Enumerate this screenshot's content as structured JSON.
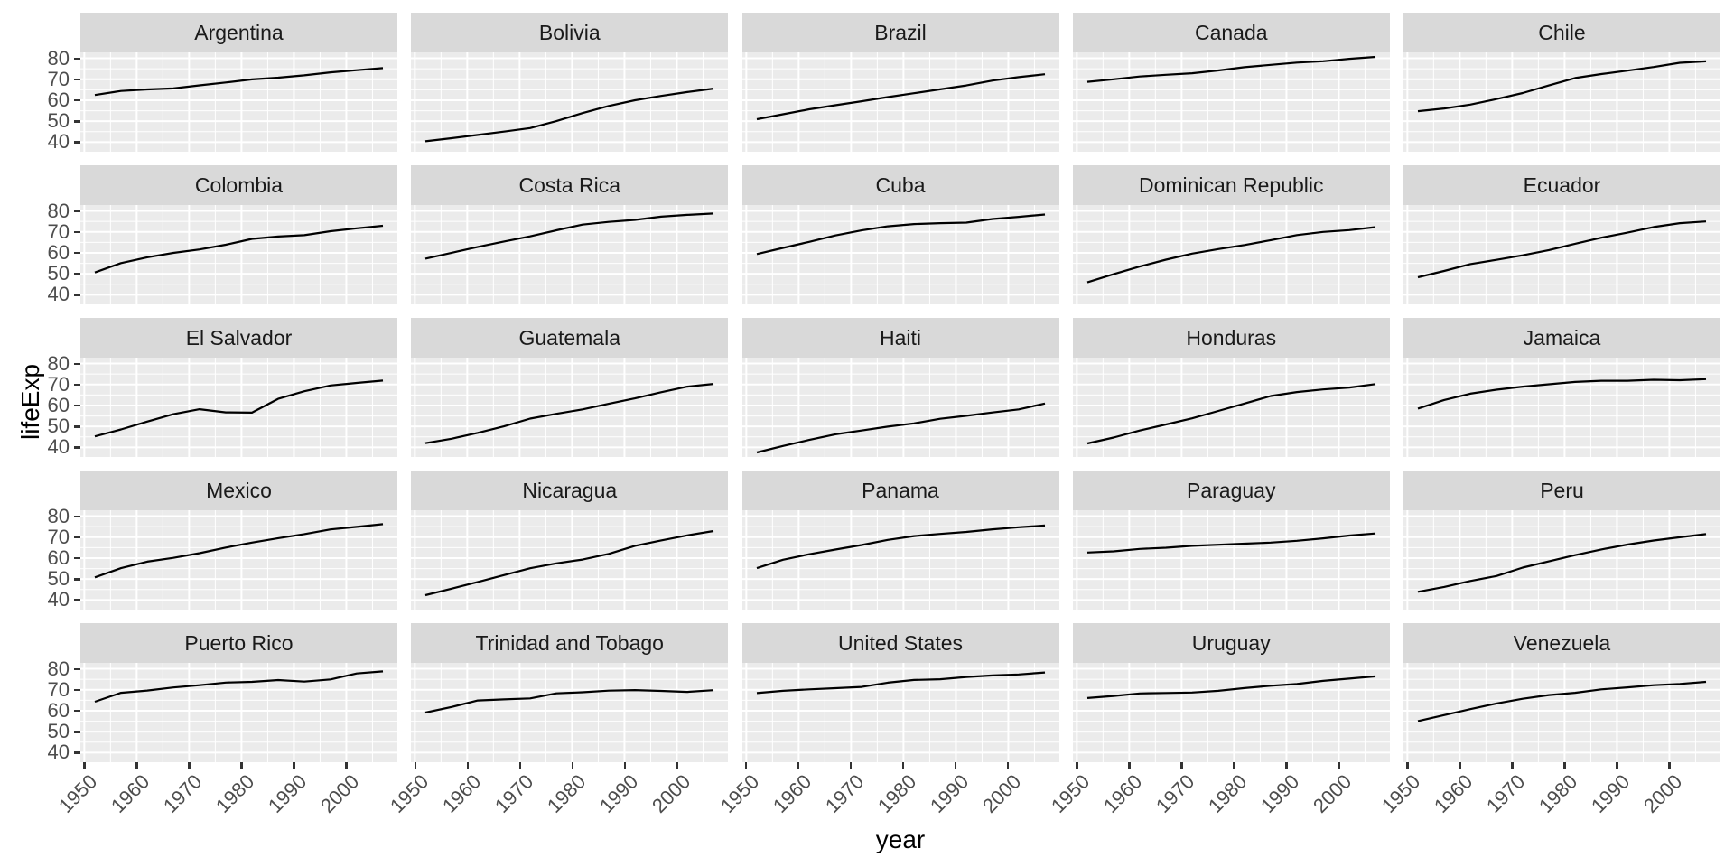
{
  "chart_data": {
    "type": "line",
    "title": "",
    "xlabel": "year",
    "ylabel": "lifeExp",
    "legend": "none",
    "grid": "major and minor white gridlines on grey panel",
    "facet_layout": {
      "rows": 5,
      "cols": 5
    },
    "x_ticks": [
      1950,
      1960,
      1970,
      1980,
      1990,
      2000
    ],
    "x_minor_ticks": [
      1955,
      1965,
      1975,
      1985,
      1995,
      2005
    ],
    "y_ticks": [
      40,
      50,
      60,
      70,
      80
    ],
    "y_minor_ticks": [
      45,
      55,
      65,
      75
    ],
    "x_domain": [
      1949.25,
      2009.75
    ],
    "y_domain": [
      35.43,
      82.81
    ],
    "x": [
      1952,
      1957,
      1962,
      1967,
      1972,
      1977,
      1982,
      1987,
      1992,
      1997,
      2002,
      2007
    ],
    "series": [
      {
        "name": "Argentina",
        "values": [
          62.49,
          64.4,
          65.14,
          65.63,
          67.07,
          68.48,
          69.94,
          70.77,
          71.87,
          73.28,
          74.34,
          75.32
        ]
      },
      {
        "name": "Bolivia",
        "values": [
          40.41,
          41.89,
          43.43,
          45.03,
          46.71,
          50.02,
          53.86,
          57.25,
          59.96,
          62.05,
          63.88,
          65.55
        ]
      },
      {
        "name": "Brazil",
        "values": [
          50.92,
          53.29,
          55.67,
          57.63,
          59.5,
          61.49,
          63.34,
          65.21,
          67.06,
          69.39,
          71.01,
          72.39
        ]
      },
      {
        "name": "Canada",
        "values": [
          68.75,
          69.96,
          71.3,
          72.13,
          72.88,
          74.21,
          75.76,
          76.86,
          77.95,
          78.61,
          79.77,
          80.65
        ]
      },
      {
        "name": "Chile",
        "values": [
          54.75,
          56.07,
          57.92,
          60.52,
          63.44,
          67.05,
          70.57,
          72.49,
          74.13,
          75.82,
          77.86,
          78.55
        ]
      },
      {
        "name": "Colombia",
        "values": [
          50.64,
          55.12,
          57.86,
          59.96,
          61.62,
          63.84,
          66.65,
          67.77,
          68.42,
          70.31,
          71.68,
          72.89
        ]
      },
      {
        "name": "Costa Rica",
        "values": [
          57.21,
          60.03,
          62.84,
          65.42,
          67.85,
          70.75,
          73.45,
          74.75,
          75.71,
          77.26,
          78.12,
          78.78
        ]
      },
      {
        "name": "Cuba",
        "values": [
          59.42,
          62.33,
          65.25,
          68.29,
          70.72,
          72.65,
          73.72,
          74.17,
          74.41,
          76.15,
          77.16,
          78.27
        ]
      },
      {
        "name": "Dominican Republic",
        "values": [
          45.93,
          49.83,
          53.46,
          56.75,
          59.63,
          61.79,
          63.73,
          66.05,
          68.46,
          69.96,
          70.85,
          72.24
        ]
      },
      {
        "name": "Ecuador",
        "values": [
          48.36,
          51.36,
          54.64,
          56.68,
          58.8,
          61.31,
          64.34,
          67.23,
          69.61,
          72.31,
          74.17,
          74.99
        ]
      },
      {
        "name": "El Salvador",
        "values": [
          45.26,
          48.57,
          52.31,
          55.86,
          58.21,
          56.7,
          56.6,
          63.15,
          66.8,
          69.54,
          70.73,
          71.88
        ]
      },
      {
        "name": "Guatemala",
        "values": [
          42.02,
          44.14,
          46.95,
          50.02,
          53.74,
          56.03,
          58.14,
          60.78,
          63.37,
          66.32,
          68.98,
          70.26
        ]
      },
      {
        "name": "Haiti",
        "values": [
          37.58,
          40.7,
          43.59,
          46.24,
          48.04,
          49.92,
          51.46,
          53.64,
          55.09,
          56.67,
          58.14,
          60.92
        ]
      },
      {
        "name": "Honduras",
        "values": [
          41.91,
          44.67,
          48.04,
          50.92,
          53.88,
          57.4,
          60.91,
          64.49,
          66.4,
          67.66,
          68.57,
          70.2
        ]
      },
      {
        "name": "Jamaica",
        "values": [
          58.53,
          62.61,
          65.61,
          67.51,
          69.0,
          70.11,
          71.21,
          71.77,
          71.77,
          72.26,
          72.05,
          72.57
        ]
      },
      {
        "name": "Mexico",
        "values": [
          50.79,
          55.19,
          58.3,
          60.11,
          62.36,
          65.03,
          67.41,
          69.5,
          71.46,
          73.67,
          74.9,
          76.19
        ]
      },
      {
        "name": "Nicaragua",
        "values": [
          42.31,
          45.43,
          48.63,
          51.88,
          55.15,
          57.47,
          59.3,
          62.01,
          65.84,
          68.43,
          70.84,
          72.9
        ]
      },
      {
        "name": "Panama",
        "values": [
          55.19,
          59.2,
          61.82,
          64.07,
          66.22,
          68.68,
          70.47,
          71.52,
          72.46,
          73.74,
          74.71,
          75.54
        ]
      },
      {
        "name": "Paraguay",
        "values": [
          62.65,
          63.2,
          64.36,
          64.95,
          65.82,
          66.35,
          66.87,
          67.38,
          68.23,
          69.4,
          70.76,
          71.75
        ]
      },
      {
        "name": "Peru",
        "values": [
          43.9,
          46.26,
          49.1,
          51.45,
          55.45,
          58.45,
          61.41,
          64.13,
          66.46,
          68.39,
          69.91,
          71.42
        ]
      },
      {
        "name": "Puerto Rico",
        "values": [
          64.28,
          68.54,
          69.62,
          71.1,
          72.16,
          73.44,
          73.75,
          74.63,
          73.91,
          74.92,
          77.78,
          78.75
        ]
      },
      {
        "name": "Trinidad and Tobago",
        "values": [
          59.1,
          61.8,
          64.9,
          65.4,
          65.9,
          68.3,
          68.83,
          69.58,
          69.86,
          69.47,
          68.98,
          69.82
        ]
      },
      {
        "name": "United States",
        "values": [
          68.44,
          69.49,
          70.21,
          70.76,
          71.34,
          73.38,
          74.65,
          75.02,
          76.09,
          76.81,
          77.31,
          78.24
        ]
      },
      {
        "name": "Uruguay",
        "values": [
          66.07,
          67.04,
          68.25,
          68.47,
          68.67,
          69.48,
          70.81,
          71.92,
          72.75,
          74.22,
          75.31,
          76.38
        ]
      },
      {
        "name": "Venezuela",
        "values": [
          55.09,
          57.91,
          60.77,
          63.48,
          65.71,
          67.46,
          68.56,
          70.19,
          71.15,
          72.15,
          72.77,
          73.75
        ]
      }
    ]
  },
  "style": {
    "background": "#FFFFFF",
    "strip_bg": "#D9D9D9",
    "strip_text_color": "#1A1A1A",
    "panel_bg": "#EBEBEB",
    "grid_color": "#FFFFFF",
    "line_color": "#000000",
    "tick_label_color": "#4D4D4D",
    "tick_mark_color": "#333333",
    "axis_title_color": "#000000"
  }
}
